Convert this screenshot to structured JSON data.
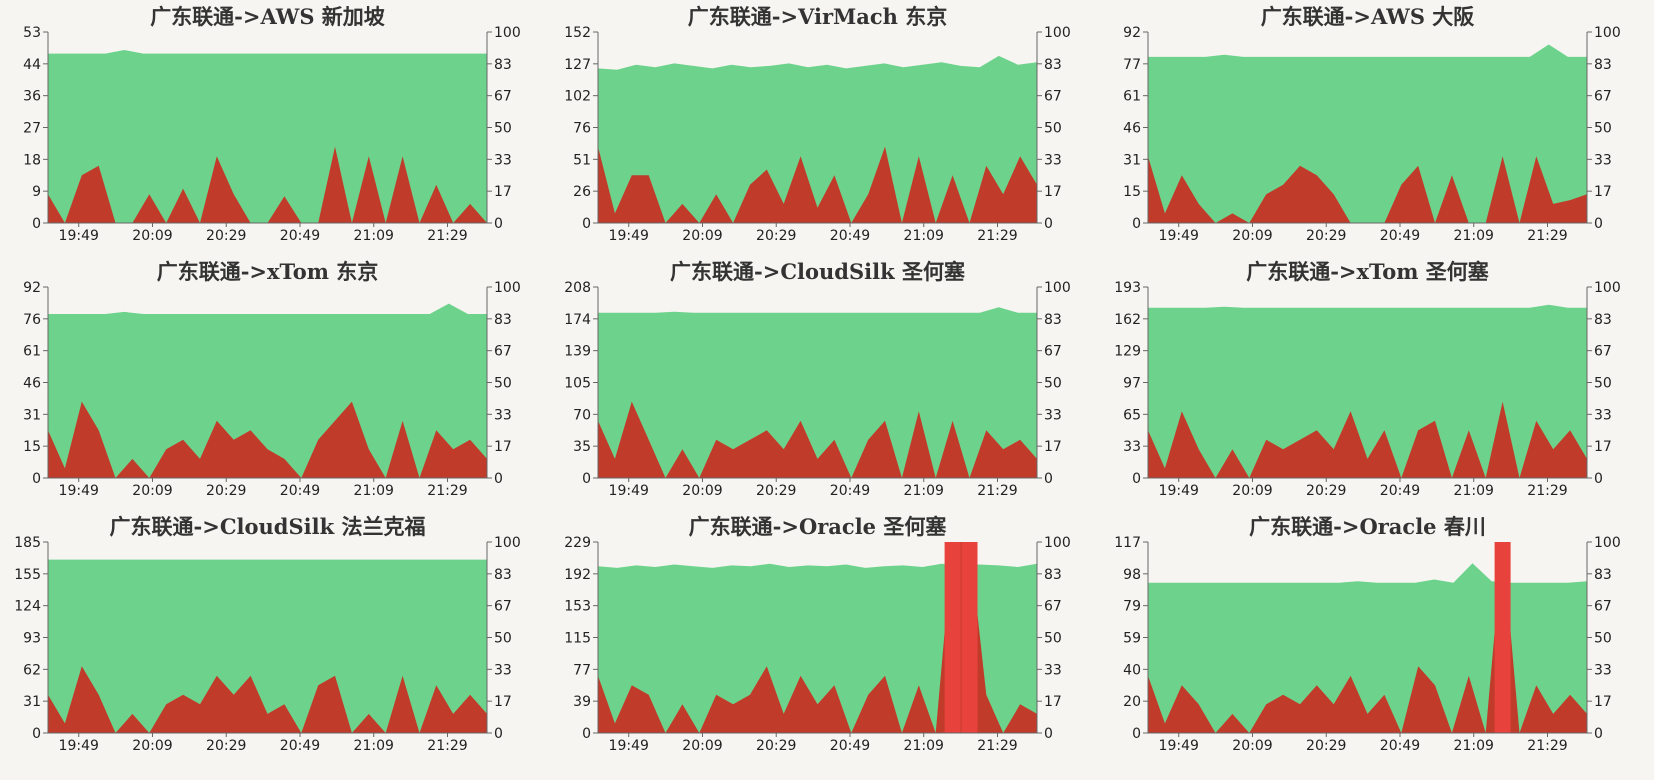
{
  "colors": {
    "background": "#f6f5f1",
    "latency_fill": "#6dd38c",
    "loss_fill": "#c13b2b",
    "loss_spike_fill": "#e8423c"
  },
  "chart_data": [
    {
      "type": "area",
      "title": "广东联通->AWS 新加坡",
      "x_ticks": [
        "19:49",
        "20:09",
        "20:29",
        "20:49",
        "21:09",
        "21:29"
      ],
      "y_left_ticks": [
        "0",
        "9",
        "18",
        "27",
        "36",
        "44",
        "53"
      ],
      "y_right_ticks": [
        "0",
        "17",
        "33",
        "50",
        "67",
        "83",
        "100"
      ],
      "ylim_left": [
        0,
        53
      ],
      "ylim_right": [
        0,
        100
      ],
      "series": [
        {
          "axis": "left",
          "values": [
            47,
            47,
            47,
            47,
            48,
            47,
            47,
            47,
            47,
            47,
            47,
            47,
            47,
            47,
            47,
            47,
            47,
            47,
            47,
            47,
            47,
            47,
            47,
            47
          ]
        },
        {
          "axis": "right",
          "values": [
            15,
            0,
            25,
            30,
            0,
            0,
            15,
            0,
            18,
            0,
            35,
            15,
            0,
            0,
            14,
            0,
            0,
            40,
            0,
            35,
            0,
            35,
            0,
            20,
            0,
            10,
            0
          ]
        }
      ]
    },
    {
      "type": "area",
      "title": "广东联通->VirMach 东京",
      "x_ticks": [
        "19:49",
        "20:09",
        "20:29",
        "20:49",
        "21:09",
        "21:29"
      ],
      "y_left_ticks": [
        "0",
        "26",
        "51",
        "76",
        "102",
        "127",
        "152"
      ],
      "y_right_ticks": [
        "0",
        "17",
        "33",
        "50",
        "67",
        "83",
        "100"
      ],
      "ylim_left": [
        0,
        152
      ],
      "ylim_right": [
        0,
        100
      ],
      "series": [
        {
          "axis": "left",
          "values": [
            123,
            122,
            126,
            124,
            127,
            125,
            123,
            126,
            124,
            125,
            127,
            124,
            126,
            123,
            125,
            127,
            124,
            126,
            128,
            125,
            124,
            133,
            126,
            128
          ]
        },
        {
          "axis": "right",
          "values": [
            40,
            5,
            25,
            25,
            0,
            10,
            0,
            15,
            0,
            20,
            28,
            10,
            35,
            8,
            25,
            0,
            15,
            40,
            0,
            35,
            0,
            25,
            0,
            30,
            15,
            35,
            20
          ]
        }
      ]
    },
    {
      "type": "area",
      "title": "广东联通->AWS 大阪",
      "x_ticks": [
        "19:49",
        "20:09",
        "20:29",
        "20:49",
        "21:09",
        "21:29"
      ],
      "y_left_ticks": [
        "0",
        "15",
        "31",
        "46",
        "61",
        "77",
        "92"
      ],
      "y_right_ticks": [
        "0",
        "17",
        "33",
        "50",
        "67",
        "83",
        "100"
      ],
      "ylim_left": [
        0,
        92
      ],
      "ylim_right": [
        0,
        100
      ],
      "series": [
        {
          "axis": "left",
          "values": [
            80,
            80,
            80,
            80,
            81,
            80,
            80,
            80,
            80,
            80,
            80,
            80,
            80,
            80,
            80,
            80,
            80,
            80,
            80,
            80,
            80,
            86,
            80,
            80
          ]
        },
        {
          "axis": "right",
          "values": [
            35,
            5,
            25,
            10,
            0,
            5,
            0,
            15,
            20,
            30,
            25,
            15,
            0,
            0,
            0,
            20,
            30,
            0,
            25,
            0,
            0,
            35,
            0,
            35,
            10,
            12,
            15
          ]
        }
      ]
    },
    {
      "type": "area",
      "title": "广东联通->xTom 东京",
      "x_ticks": [
        "19:49",
        "20:09",
        "20:29",
        "20:49",
        "21:09",
        "21:29"
      ],
      "y_left_ticks": [
        "0",
        "15",
        "31",
        "46",
        "61",
        "76",
        "92"
      ],
      "y_right_ticks": [
        "0",
        "17",
        "33",
        "50",
        "67",
        "83",
        "100"
      ],
      "ylim_left": [
        0,
        92
      ],
      "ylim_right": [
        0,
        100
      ],
      "series": [
        {
          "axis": "left",
          "values": [
            79,
            79,
            79,
            79,
            80,
            79,
            79,
            79,
            79,
            79,
            79,
            79,
            79,
            79,
            79,
            79,
            79,
            79,
            79,
            79,
            79,
            84,
            79,
            79
          ]
        },
        {
          "axis": "right",
          "values": [
            25,
            5,
            40,
            25,
            0,
            10,
            0,
            15,
            20,
            10,
            30,
            20,
            25,
            15,
            10,
            0,
            20,
            30,
            40,
            15,
            0,
            30,
            0,
            25,
            15,
            20,
            10
          ]
        }
      ]
    },
    {
      "type": "area",
      "title": "广东联通->CloudSilk 圣何塞",
      "x_ticks": [
        "19:49",
        "20:09",
        "20:29",
        "20:49",
        "21:09",
        "21:29"
      ],
      "y_left_ticks": [
        "0",
        "35",
        "70",
        "105",
        "139",
        "174",
        "208"
      ],
      "y_right_ticks": [
        "0",
        "17",
        "33",
        "50",
        "67",
        "83",
        "100"
      ],
      "ylim_left": [
        0,
        208
      ],
      "ylim_right": [
        0,
        100
      ],
      "series": [
        {
          "axis": "left",
          "values": [
            180,
            180,
            180,
            180,
            181,
            180,
            180,
            180,
            180,
            180,
            180,
            180,
            180,
            180,
            180,
            180,
            180,
            180,
            180,
            180,
            180,
            186,
            180,
            180
          ]
        },
        {
          "axis": "right",
          "values": [
            30,
            10,
            40,
            20,
            0,
            15,
            0,
            20,
            15,
            20,
            25,
            15,
            30,
            10,
            20,
            0,
            20,
            30,
            0,
            35,
            0,
            30,
            0,
            25,
            15,
            20,
            10
          ]
        }
      ]
    },
    {
      "type": "area",
      "title": "广东联通->xTom 圣何塞",
      "x_ticks": [
        "19:49",
        "20:09",
        "20:29",
        "20:49",
        "21:09",
        "21:29"
      ],
      "y_left_ticks": [
        "0",
        "33",
        "65",
        "97",
        "129",
        "162",
        "193"
      ],
      "y_right_ticks": [
        "0",
        "17",
        "33",
        "50",
        "67",
        "83",
        "100"
      ],
      "ylim_left": [
        0,
        193
      ],
      "ylim_right": [
        0,
        100
      ],
      "series": [
        {
          "axis": "left",
          "values": [
            172,
            172,
            172,
            172,
            173,
            172,
            172,
            172,
            172,
            172,
            172,
            172,
            172,
            172,
            172,
            172,
            172,
            172,
            172,
            172,
            172,
            175,
            172,
            172
          ]
        },
        {
          "axis": "right",
          "values": [
            25,
            5,
            35,
            15,
            0,
            15,
            0,
            20,
            15,
            20,
            25,
            15,
            35,
            10,
            25,
            0,
            25,
            30,
            0,
            25,
            0,
            40,
            0,
            30,
            15,
            25,
            10
          ]
        }
      ]
    },
    {
      "type": "area",
      "title": "广东联通->CloudSilk 法兰克福",
      "x_ticks": [
        "19:49",
        "20:09",
        "20:29",
        "20:49",
        "21:09",
        "21:29"
      ],
      "y_left_ticks": [
        "0",
        "31",
        "62",
        "93",
        "124",
        "155",
        "185"
      ],
      "y_right_ticks": [
        "0",
        "17",
        "33",
        "50",
        "67",
        "83",
        "100"
      ],
      "ylim_left": [
        0,
        185
      ],
      "ylim_right": [
        0,
        100
      ],
      "series": [
        {
          "axis": "left",
          "values": [
            168,
            168,
            168,
            168,
            168,
            168,
            168,
            168,
            168,
            168,
            168,
            168,
            168,
            168,
            168,
            168,
            168,
            168,
            168,
            168,
            168,
            168,
            168,
            168
          ]
        },
        {
          "axis": "right",
          "values": [
            20,
            5,
            35,
            20,
            0,
            10,
            0,
            15,
            20,
            15,
            30,
            20,
            30,
            10,
            15,
            0,
            25,
            30,
            0,
            10,
            0,
            30,
            0,
            25,
            10,
            20,
            10
          ]
        }
      ]
    },
    {
      "type": "area",
      "title": "广东联通->Oracle 圣何塞",
      "x_ticks": [
        "19:49",
        "20:09",
        "20:29",
        "20:49",
        "21:09",
        "21:29"
      ],
      "y_left_ticks": [
        "0",
        "39",
        "77",
        "115",
        "153",
        "192",
        "229"
      ],
      "y_right_ticks": [
        "0",
        "17",
        "33",
        "50",
        "67",
        "83",
        "100"
      ],
      "ylim_left": [
        0,
        229
      ],
      "ylim_right": [
        0,
        100
      ],
      "series": [
        {
          "axis": "left",
          "values": [
            200,
            198,
            201,
            199,
            202,
            200,
            198,
            201,
            200,
            203,
            199,
            201,
            200,
            202,
            198,
            200,
            201,
            199,
            203,
            200,
            202,
            201,
            199,
            203
          ]
        },
        {
          "axis": "right",
          "values": [
            30,
            5,
            25,
            20,
            0,
            15,
            0,
            20,
            15,
            20,
            35,
            10,
            30,
            15,
            25,
            0,
            20,
            30,
            0,
            25,
            0,
            100,
            100,
            20,
            0,
            15,
            10
          ]
        }
      ]
    },
    {
      "type": "area",
      "title": "广东联通->Oracle 春川",
      "x_ticks": [
        "19:49",
        "20:09",
        "20:29",
        "20:49",
        "21:09",
        "21:29"
      ],
      "y_left_ticks": [
        "0",
        "20",
        "40",
        "59",
        "79",
        "98",
        "117"
      ],
      "y_right_ticks": [
        "0",
        "17",
        "33",
        "50",
        "67",
        "83",
        "100"
      ],
      "ylim_left": [
        0,
        117
      ],
      "ylim_right": [
        0,
        100
      ],
      "series": [
        {
          "axis": "left",
          "values": [
            92,
            92,
            92,
            92,
            92,
            92,
            92,
            92,
            92,
            92,
            92,
            93,
            92,
            92,
            92,
            94,
            92,
            104,
            93,
            92,
            92,
            92,
            92,
            93
          ]
        },
        {
          "axis": "right",
          "values": [
            30,
            5,
            25,
            15,
            0,
            10,
            0,
            15,
            20,
            15,
            25,
            15,
            30,
            10,
            20,
            0,
            35,
            25,
            0,
            30,
            0,
            100,
            0,
            25,
            10,
            20,
            10
          ]
        }
      ]
    }
  ]
}
